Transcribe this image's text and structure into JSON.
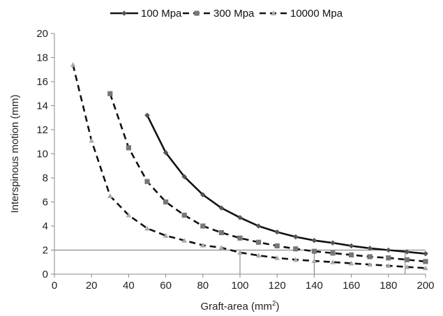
{
  "chart_data": {
    "type": "line",
    "xlabel": "Graft-area (mm",
    "xlabel_sup": "2",
    "xlabel_end": ")",
    "ylabel": "Interspinous motion (mm)",
    "xlim": [
      0,
      200
    ],
    "ylim": [
      0,
      20
    ],
    "xticks": [
      0,
      20,
      40,
      60,
      80,
      100,
      120,
      140,
      160,
      180,
      200
    ],
    "yticks": [
      0,
      2,
      4,
      6,
      8,
      10,
      12,
      14,
      16,
      18,
      20
    ],
    "grid": false,
    "legend_position": "top",
    "series": [
      {
        "name": "100 Mpa",
        "marker": "diamond",
        "line": "solid",
        "color": "#111111",
        "marker_color": "#555555",
        "x": [
          50,
          60,
          70,
          80,
          90,
          100,
          110,
          120,
          130,
          140,
          150,
          160,
          170,
          180,
          190,
          200
        ],
        "y": [
          13.2,
          10.1,
          8.1,
          6.6,
          5.5,
          4.7,
          4.0,
          3.5,
          3.1,
          2.8,
          2.6,
          2.35,
          2.15,
          2.0,
          1.85,
          1.7
        ]
      },
      {
        "name": "300 Mpa",
        "marker": "square",
        "line": "dashed",
        "color": "#111111",
        "marker_color": "#777777",
        "x": [
          30,
          40,
          50,
          60,
          70,
          80,
          90,
          100,
          110,
          120,
          130,
          140,
          150,
          160,
          170,
          180,
          190,
          200
        ],
        "y": [
          15.0,
          10.5,
          7.7,
          6.0,
          4.9,
          4.0,
          3.45,
          3.0,
          2.65,
          2.35,
          2.1,
          1.9,
          1.75,
          1.6,
          1.45,
          1.35,
          1.2,
          1.05
        ]
      },
      {
        "name": "10000 Mpa",
        "marker": "triangle",
        "line": "dashed",
        "color": "#111111",
        "marker_color": "#aaaaaa",
        "x": [
          10,
          20,
          30,
          40,
          50,
          60,
          70,
          80,
          90,
          100,
          110,
          120,
          130,
          140,
          150,
          160,
          170,
          180,
          190,
          200
        ],
        "y": [
          17.4,
          11.1,
          6.5,
          4.9,
          3.8,
          3.2,
          2.8,
          2.4,
          2.2,
          1.8,
          1.55,
          1.35,
          1.2,
          1.1,
          1.0,
          0.9,
          0.8,
          0.7,
          0.6,
          0.5
        ]
      }
    ],
    "reference_lines": {
      "horizontal_y": 2,
      "vertical_x": [
        100,
        140,
        189
      ]
    }
  }
}
